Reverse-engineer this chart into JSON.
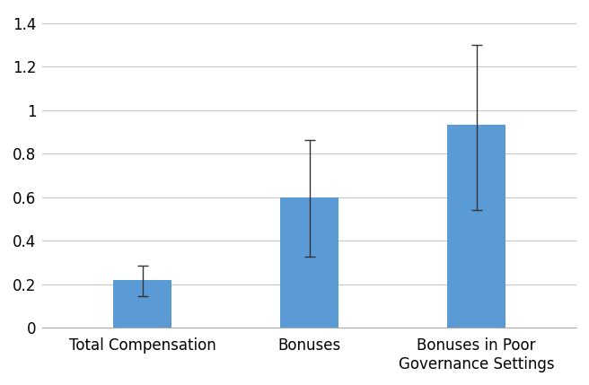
{
  "categories": [
    "Total Compensation",
    "Bonuses",
    "Bonuses in Poor\nGovernance Settings"
  ],
  "values": [
    0.22,
    0.6,
    0.935
  ],
  "errors_lower": [
    0.075,
    0.275,
    0.395
  ],
  "errors_upper": [
    0.065,
    0.265,
    0.365
  ],
  "bar_color": "#5B9BD5",
  "bar_width": 0.35,
  "ylim": [
    0,
    1.45
  ],
  "yticks": [
    0,
    0.2,
    0.4,
    0.6,
    0.8,
    1.0,
    1.2,
    1.4
  ],
  "ytick_labels": [
    "0",
    "0.2",
    "0.4",
    "0.6",
    "0.8",
    "1",
    "1.2",
    "1.4"
  ],
  "grid_color": "#C8C8C8",
  "background_color": "#FFFFFF",
  "errorbar_color": "#333333",
  "errorbar_capsize": 4,
  "errorbar_linewidth": 1.0,
  "tick_fontsize": 12,
  "label_fontsize": 12
}
